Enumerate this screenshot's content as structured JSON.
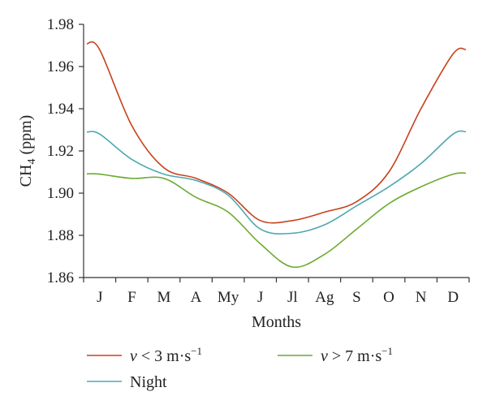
{
  "chart_data": {
    "type": "line",
    "xlabel": "Months",
    "ylabel": "CH4 (ppm)",
    "ylabel_parts": {
      "main": "CH",
      "sub": "4",
      "rest": " (ppm)"
    },
    "categories": [
      "J",
      "F",
      "M",
      "A",
      "My",
      "J",
      "Jl",
      "Ag",
      "S",
      "O",
      "N",
      "D"
    ],
    "ylim": [
      1.86,
      1.98
    ],
    "yticks": [
      "1.98",
      "1.96",
      "1.94",
      "1.92",
      "1.90",
      "1.88",
      "1.86"
    ],
    "grid": false,
    "legend_position": "bottom",
    "series": [
      {
        "name": "ν < 3 m·s−1",
        "name_parts": {
          "var": "ν",
          "op": " < 3 m·s",
          "sup": "−1"
        },
        "color": "#c8401a",
        "values": [
          1.968,
          1.932,
          1.912,
          1.907,
          1.9,
          1.887,
          1.887,
          1.891,
          1.896,
          1.91,
          1.94,
          1.966
        ]
      },
      {
        "name": "ν > 7 m·s−1",
        "name_parts": {
          "var": "ν",
          "op": " > 7 m·s",
          "sup": "−1"
        },
        "color": "#6aaa2e",
        "values": [
          1.909,
          1.907,
          1.907,
          1.898,
          1.891,
          1.876,
          1.865,
          1.871,
          1.883,
          1.895,
          1.903,
          1.909
        ]
      },
      {
        "name": "Night",
        "color": "#4fa8b0",
        "values": [
          1.928,
          1.916,
          1.909,
          1.906,
          1.899,
          1.883,
          1.881,
          1.885,
          1.894,
          1.903,
          1.914,
          1.928
        ]
      }
    ]
  }
}
